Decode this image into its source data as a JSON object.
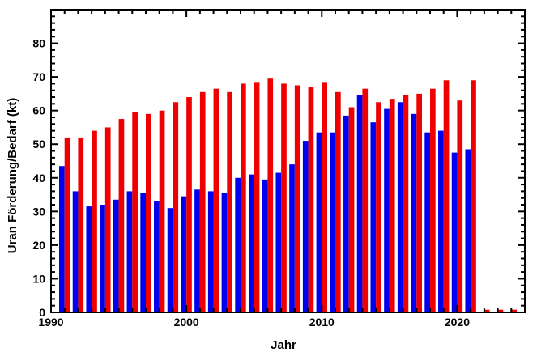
{
  "chart_data": {
    "type": "bar",
    "title": "",
    "xlabel": "Jahr",
    "ylabel": "Uran Förderung/Bedarf (kt)",
    "xlim": [
      1990,
      2025
    ],
    "ylim": [
      0,
      90
    ],
    "xticks": [
      1990,
      2000,
      2010,
      2020
    ],
    "yticks": [
      0,
      10,
      20,
      30,
      40,
      50,
      60,
      70,
      80
    ],
    "grid": false,
    "legend": "none",
    "colors": {
      "production": "#0000ee",
      "demand": "#ee0000",
      "axis": "#000000"
    },
    "series": [
      {
        "key": "production",
        "x": [
          1991,
          1992,
          1993,
          1994,
          1995,
          1996,
          1997,
          1998,
          1999,
          2000,
          2001,
          2002,
          2003,
          2004,
          2005,
          2006,
          2007,
          2008,
          2009,
          2010,
          2011,
          2012,
          2013,
          2014,
          2015,
          2016,
          2017,
          2018,
          2019,
          2020,
          2021
        ],
        "values": [
          43.5,
          36,
          31.5,
          32,
          33.5,
          36,
          35.5,
          33,
          31,
          34.5,
          36.5,
          36,
          35.5,
          40,
          41,
          39.5,
          41.5,
          44,
          51,
          53.5,
          53.5,
          58.5,
          64.5,
          56.5,
          60.5,
          62.5,
          59,
          53.5,
          54,
          47.5,
          48.5
        ]
      },
      {
        "key": "demand",
        "x": [
          1991,
          1992,
          1993,
          1994,
          1995,
          1996,
          1997,
          1998,
          1999,
          2000,
          2001,
          2002,
          2003,
          2004,
          2005,
          2006,
          2007,
          2008,
          2009,
          2010,
          2011,
          2012,
          2013,
          2014,
          2015,
          2016,
          2017,
          2018,
          2019,
          2020,
          2021,
          2022,
          2023,
          2024
        ],
        "values": [
          52,
          52,
          54,
          55,
          57.5,
          59.5,
          59,
          60,
          62.5,
          64,
          65.5,
          66.5,
          65.5,
          68,
          68.5,
          69.5,
          68,
          67.5,
          67,
          68.5,
          65.5,
          61,
          66.5,
          62.5,
          63.5,
          64.5,
          65,
          66.5,
          69,
          63,
          69,
          0.8,
          0.8,
          0.8
        ]
      }
    ]
  }
}
